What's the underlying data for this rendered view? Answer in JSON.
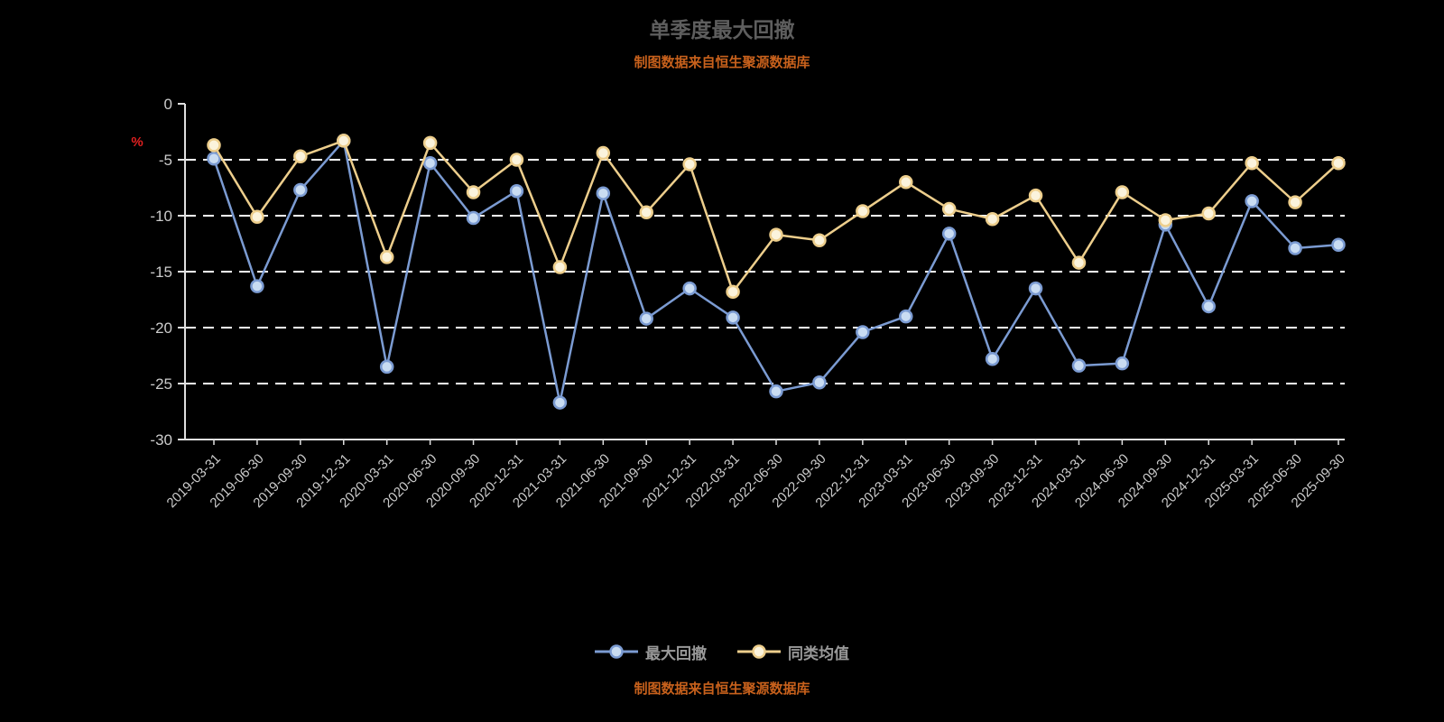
{
  "chart": {
    "title": "单季度最大回撤",
    "source_note": "制图数据来自恒生聚源数据库",
    "y_unit_label": "%"
  },
  "chart_data": {
    "type": "line",
    "title": "单季度最大回撤",
    "xlabel": "",
    "ylabel": "%",
    "ylim": [
      -30,
      0
    ],
    "yticks": [
      0,
      -5,
      -10,
      -15,
      -20,
      -25,
      -30
    ],
    "grid": "dashed-horizontal",
    "legend_position": "bottom",
    "categories": [
      "2019-03-31",
      "2019-06-30",
      "2019-09-30",
      "2019-12-31",
      "2020-03-31",
      "2020-06-30",
      "2020-09-30",
      "2020-12-31",
      "2021-03-31",
      "2021-06-30",
      "2021-09-30",
      "2021-12-31",
      "2022-03-31",
      "2022-06-30",
      "2022-09-30",
      "2022-12-31",
      "2023-03-31",
      "2023-06-30",
      "2023-09-30",
      "2023-12-31",
      "2024-03-31",
      "2024-06-30",
      "2024-09-30",
      "2024-12-31",
      "2025-03-31",
      "2025-06-30",
      "2025-09-30"
    ],
    "series": [
      {
        "name": "最大回撤",
        "color": "#7B9BD2",
        "marker_fill": "#C9DCF2",
        "values": [
          -4.9,
          -16.3,
          -7.7,
          -3.3,
          -23.5,
          -5.3,
          -10.2,
          -7.8,
          -26.7,
          -8.0,
          -19.2,
          -16.5,
          -19.1,
          -25.7,
          -24.9,
          -20.4,
          -19.0,
          -11.6,
          -22.8,
          -16.5,
          -23.4,
          -23.2,
          -10.8,
          -18.1,
          -8.7,
          -12.9,
          -12.6
        ]
      },
      {
        "name": "同类均值",
        "color": "#EDCE8C",
        "marker_fill": "#FBF3DC",
        "values": [
          -3.7,
          -10.1,
          -4.7,
          -3.3,
          -13.7,
          -3.5,
          -7.9,
          -5.0,
          -14.6,
          -4.4,
          -9.7,
          -5.4,
          -16.8,
          -11.7,
          -12.2,
          -9.6,
          -7.0,
          -9.4,
          -10.3,
          -8.2,
          -14.2,
          -7.9,
          -10.4,
          -9.8,
          -5.3,
          -8.8,
          -5.3
        ]
      }
    ]
  },
  "colors": {
    "background": "#000000",
    "title": "#5E5E5E",
    "source_note": "#C8611C",
    "axis": "#E0E0E0",
    "tick_label": "#CCCCCC",
    "grid": "#FFFFFF",
    "unit_label": "#E02020",
    "legend_label": "#999999"
  }
}
